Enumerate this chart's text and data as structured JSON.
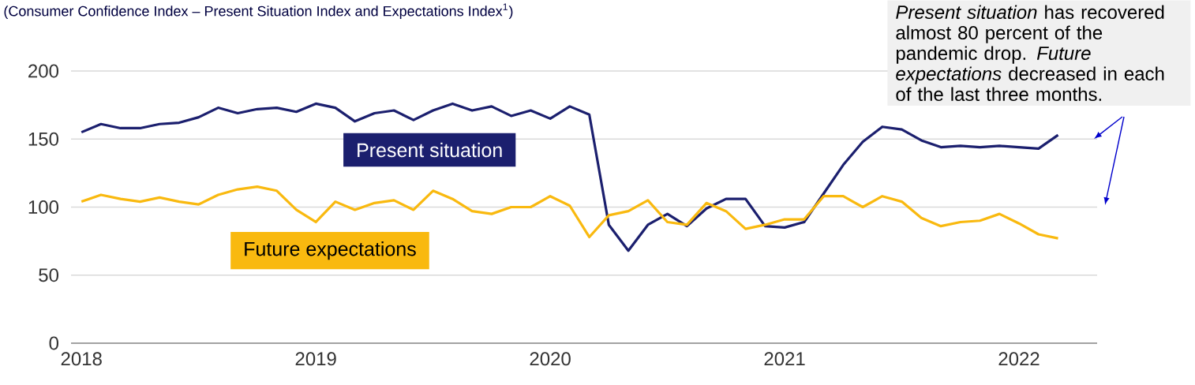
{
  "chart_data": {
    "type": "line",
    "subtitle": "(Consumer Confidence Index – Present Situation Index and Expectations Index$^{1}$)",
    "x": [
      "2018-01",
      "2018-02",
      "2018-03",
      "2018-04",
      "2018-05",
      "2018-06",
      "2018-07",
      "2018-08",
      "2018-09",
      "2018-10",
      "2018-11",
      "2018-12",
      "2019-01",
      "2019-02",
      "2019-03",
      "2019-04",
      "2019-05",
      "2019-06",
      "2019-07",
      "2019-08",
      "2019-09",
      "2019-10",
      "2019-11",
      "2019-12",
      "2020-01",
      "2020-02",
      "2020-03",
      "2020-04",
      "2020-05",
      "2020-06",
      "2020-07",
      "2020-08",
      "2020-09",
      "2020-10",
      "2020-11",
      "2020-12",
      "2021-01",
      "2021-02",
      "2021-03",
      "2021-04",
      "2021-05",
      "2021-06",
      "2021-07",
      "2021-08",
      "2021-09",
      "2021-10",
      "2021-11",
      "2021-12",
      "2022-01",
      "2022-02",
      "2022-03"
    ],
    "series": [
      {
        "name": "Present situation",
        "color": "#1b1f6e",
        "values": [
          155,
          161,
          158,
          158,
          161,
          162,
          166,
          173,
          169,
          172,
          173,
          170,
          176,
          173,
          163,
          169,
          171,
          164,
          171,
          176,
          171,
          174,
          167,
          171,
          165,
          174,
          168,
          87,
          68,
          87,
          95,
          86,
          99,
          106,
          106,
          86,
          85,
          89,
          110,
          131,
          148,
          159,
          157,
          149,
          144,
          145,
          144,
          145,
          144,
          143,
          153
        ]
      },
      {
        "name": "Future expectations",
        "color": "#f9b90f",
        "values": [
          104,
          109,
          106,
          104,
          107,
          104,
          102,
          109,
          113,
          115,
          112,
          98,
          89,
          104,
          98,
          103,
          105,
          98,
          112,
          106,
          97,
          95,
          100,
          100,
          108,
          101,
          78,
          94,
          97,
          105,
          89,
          87,
          103,
          97,
          84,
          87,
          91,
          91,
          108,
          108,
          100,
          108,
          104,
          92,
          86,
          89,
          90,
          95,
          88,
          80,
          77
        ]
      }
    ],
    "xlim": [
      "2017-12-15",
      "2022-05-01"
    ],
    "xticks": [
      "2018",
      "2019",
      "2020",
      "2021",
      "2022"
    ],
    "ylim": [
      0,
      200
    ],
    "yticks": [
      0,
      50,
      100,
      150,
      200
    ],
    "grid": "y",
    "marker": "none",
    "line_style": "solid",
    "annotations": [
      "*Present situation* has recovered almost 80 percent of the pandemic drop. *Future expectations* decreased in each of the last three months."
    ]
  }
}
